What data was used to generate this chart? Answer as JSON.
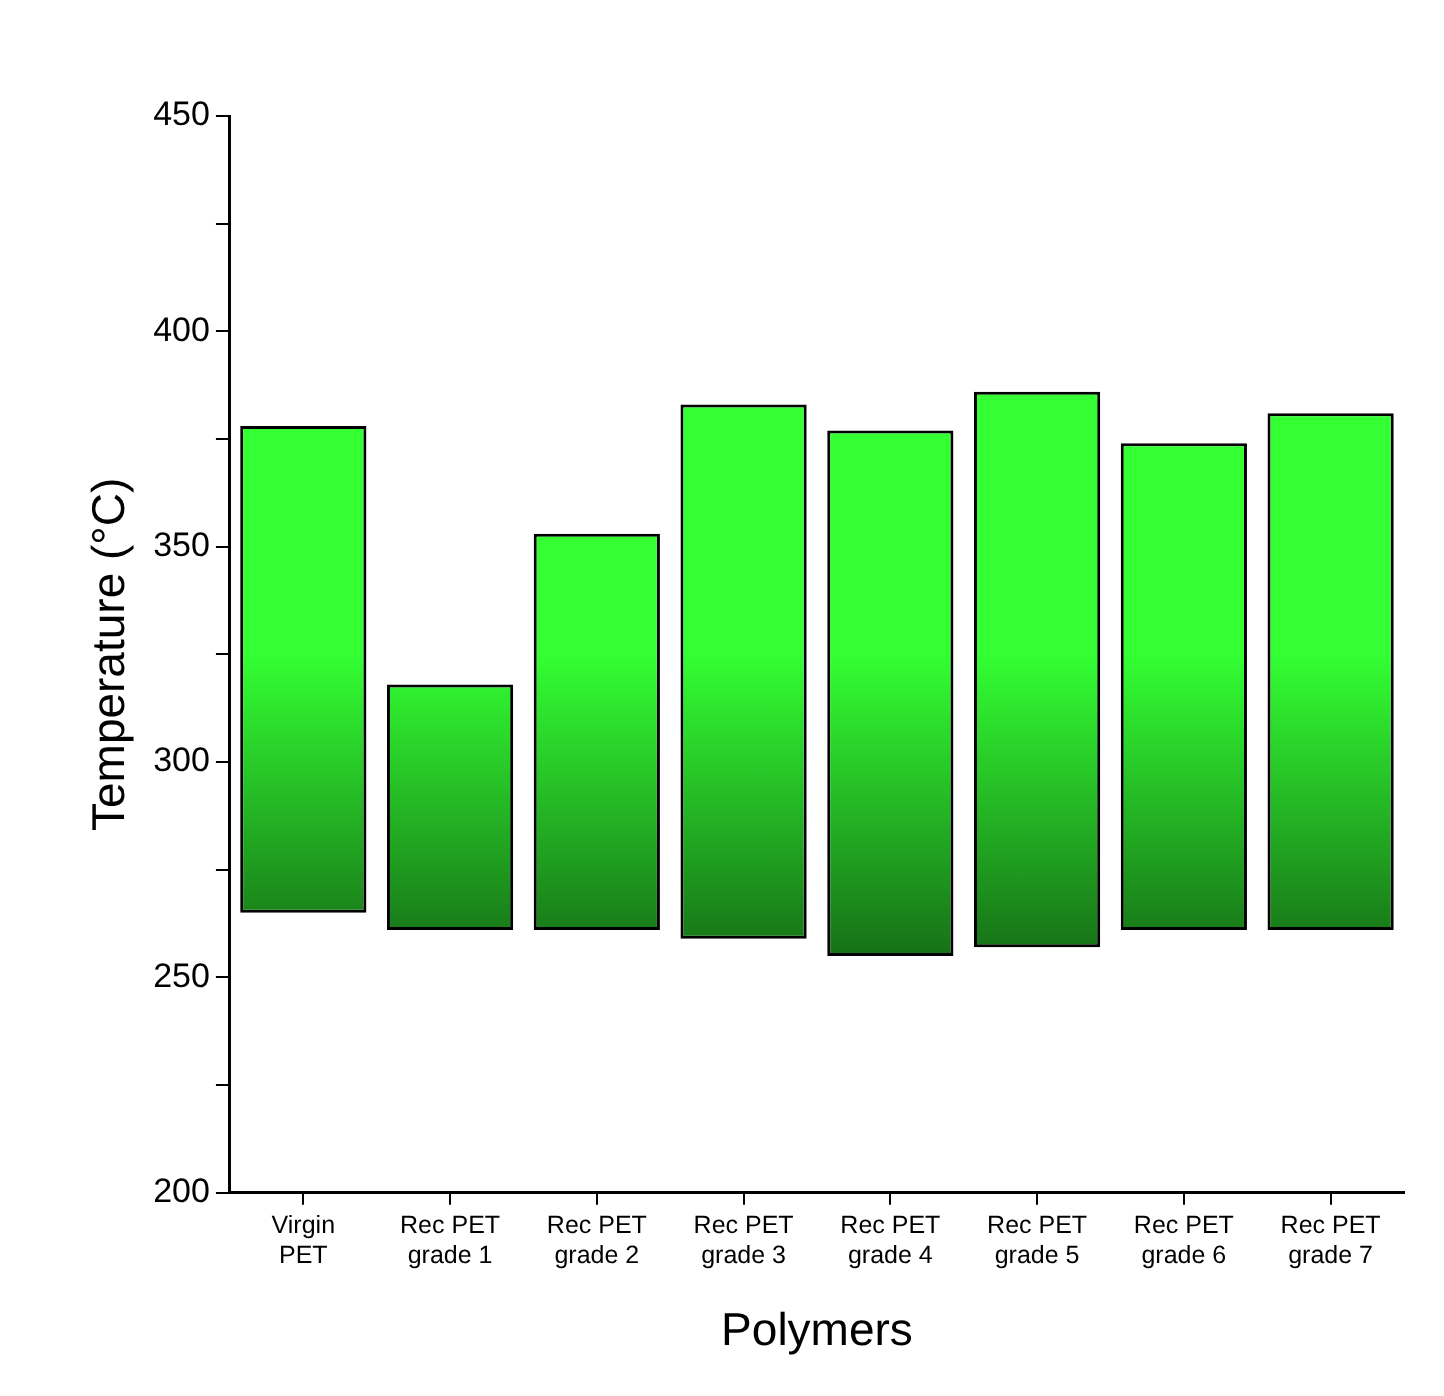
{
  "chart_data": {
    "type": "bar",
    "xlabel": "Polymers",
    "ylabel": "Temperature (°C)",
    "categories": [
      "Virgin PET",
      "Rec PET grade 1",
      "Rec PET grade 2",
      "Rec PET grade 3",
      "Rec PET grade 4",
      "Rec PET grade 5",
      "Rec PET grade 6",
      "Rec PET grade 7"
    ],
    "base": [
      265,
      261,
      261,
      259,
      255,
      257,
      261,
      261
    ],
    "values": [
      113,
      57,
      92,
      124,
      122,
      129,
      113,
      120
    ],
    "color": "#33ff33",
    "ylim": [
      200,
      450
    ],
    "yticks": [
      200,
      {
        "value": 225,
        "label": null
      },
      250,
      {
        "value": 275,
        "label": null
      },
      300,
      {
        "value": 325,
        "label": null
      },
      350,
      {
        "value": 375,
        "label": null
      },
      400,
      {
        "value": 425,
        "label": null
      },
      450
    ],
    "grid": false,
    "legend": false
  }
}
